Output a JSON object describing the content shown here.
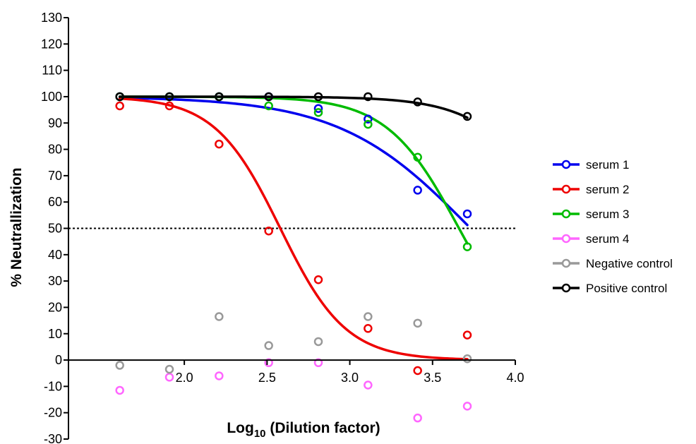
{
  "chart_data": {
    "type": "scatter",
    "xlabel_main": "Log",
    "xlabel_sub": "10",
    "xlabel_rest": " (Dilution factor)",
    "ylabel": "% Neutrallization",
    "xlim": [
      1.3,
      4.0
    ],
    "ylim": [
      -30,
      130
    ],
    "x_ticks": [
      2.0,
      2.5,
      3.0,
      3.5,
      4.0
    ],
    "x_tick_labels": [
      "2.0",
      "2.5",
      "3.0",
      "3.5",
      "4.0"
    ],
    "y_ticks": [
      -30,
      -20,
      -10,
      0,
      10,
      20,
      30,
      40,
      50,
      60,
      70,
      80,
      90,
      100,
      110,
      120,
      130
    ],
    "y_tick_labels": [
      "-30",
      "-20",
      "-10",
      "0",
      "10",
      "20",
      "30",
      "40",
      "50",
      "60",
      "70",
      "80",
      "90",
      "100",
      "110",
      "120",
      "130"
    ],
    "reference_line": {
      "y": 50,
      "style": "dotted"
    },
    "x": [
      1.61,
      1.91,
      2.21,
      2.51,
      2.81,
      3.11,
      3.41,
      3.71
    ],
    "legend_position": "right",
    "series": [
      {
        "name": "serum 1",
        "color": "#0000ee",
        "values": [
          100,
          100,
          100,
          100,
          95.5,
          91.5,
          64.5,
          55.5
        ],
        "curve": {
          "x_start": 1.61,
          "x_end": 3.71,
          "top": 100,
          "bottom": 0,
          "logIC50": 3.73,
          "hill": 1.1
        }
      },
      {
        "name": "serum 2",
        "color": "#ee0000",
        "values": [
          96.5,
          96.5,
          82,
          49,
          30.5,
          12,
          -4,
          9.5
        ],
        "curve": {
          "x_start": 1.61,
          "x_end": 3.71,
          "top": 100,
          "bottom": 0,
          "logIC50": 2.58,
          "hill": 2.2
        }
      },
      {
        "name": "serum 3",
        "color": "#00bb00",
        "values": [
          100,
          100,
          100,
          96.5,
          94,
          89.5,
          77,
          43
        ],
        "curve": {
          "x_start": 1.61,
          "x_end": 3.71,
          "top": 100,
          "bottom": 0,
          "logIC50": 3.66,
          "hill": 2.0
        }
      },
      {
        "name": "serum 4",
        "color": "#ff66ff",
        "values": [
          -11.5,
          -6.5,
          -6,
          -1,
          -1,
          -9.5,
          -22,
          -17.5
        ]
      },
      {
        "name": "Negative control",
        "color": "#999999",
        "values": [
          -2,
          -3.5,
          16.5,
          5.5,
          7,
          16.5,
          14,
          0.5
        ]
      },
      {
        "name": "Positive control",
        "color": "#000000",
        "values": [
          100,
          100,
          100,
          100,
          100,
          100,
          98,
          92.5
        ],
        "curve": {
          "x_start": 1.61,
          "x_end": 3.71,
          "top": 100,
          "bottom": 0,
          "logIC50": 4.3,
          "hill": 1.8
        }
      }
    ]
  }
}
